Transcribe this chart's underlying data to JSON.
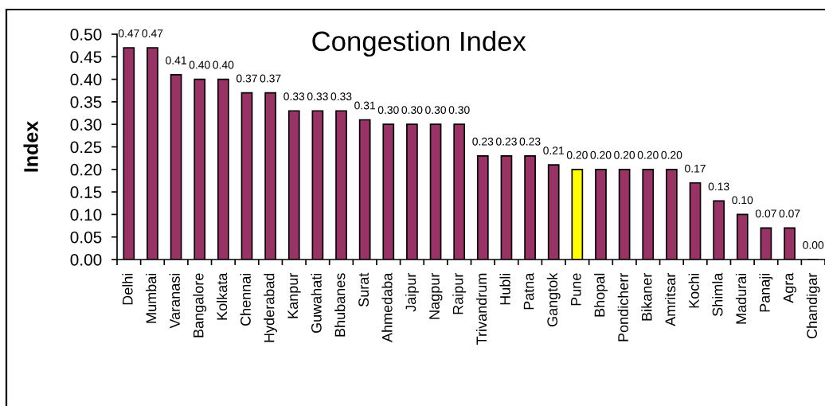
{
  "chart_data": {
    "type": "bar",
    "title": "Congestion Index",
    "ylabel": "Index",
    "categories": [
      "Delhi",
      "Mumbai",
      "Varanasi",
      "Bangalore",
      "Kolkata",
      "Chennai",
      "Hyderabad",
      "Kanpur",
      "Guwahati",
      "Bhubanes",
      "Surat",
      "Ahmedaba",
      "Jaipur",
      "Nagpur",
      "Raipur",
      "Trivandrum",
      "Hubli",
      "Patna",
      "Gangtok",
      "Pune",
      "Bhopal",
      "Pondicherr",
      "Bikaner",
      "Amritsar",
      "Kochi",
      "Shimla",
      "Madurai",
      "Panaji",
      "Agra",
      "Chandigar"
    ],
    "values": [
      0.47,
      0.47,
      0.41,
      0.4,
      0.4,
      0.37,
      0.37,
      0.33,
      0.33,
      0.33,
      0.31,
      0.3,
      0.3,
      0.3,
      0.3,
      0.23,
      0.23,
      0.23,
      0.21,
      0.2,
      0.2,
      0.2,
      0.2,
      0.2,
      0.17,
      0.13,
      0.1,
      0.07,
      0.07,
      0.0
    ],
    "value_labels": [
      "0.47",
      "0.47",
      "0.41",
      "0.40",
      "0.40",
      "0.37",
      "0.37",
      "0.33",
      "0.33",
      "0.33",
      "0.31",
      "0.30",
      "0.30",
      "0.30",
      "0.30",
      "0.23",
      "0.23",
      "0.23",
      "0.21",
      "0.20",
      "0.20",
      "0.20",
      "0.20",
      "0.20",
      "0.17",
      "0.13",
      "0.10",
      "0.07",
      "0.07",
      "0.00"
    ],
    "colors": [
      "#993366",
      "#993366",
      "#993366",
      "#993366",
      "#993366",
      "#993366",
      "#993366",
      "#993366",
      "#993366",
      "#993366",
      "#993366",
      "#993366",
      "#993366",
      "#993366",
      "#993366",
      "#993366",
      "#993366",
      "#993366",
      "#993366",
      "#ffff00",
      "#993366",
      "#993366",
      "#993366",
      "#993366",
      "#993366",
      "#993366",
      "#993366",
      "#993366",
      "#993366",
      "#993366"
    ],
    "ylim": [
      0,
      0.5
    ],
    "yticks": [
      {
        "value": 0,
        "label": "0.00"
      },
      {
        "value": 0.05,
        "label": "0.05"
      },
      {
        "value": 0.1,
        "label": "0.10"
      },
      {
        "value": 0.15,
        "label": "0.15"
      },
      {
        "value": 0.2,
        "label": "0.20"
      },
      {
        "value": 0.25,
        "label": "0.25"
      },
      {
        "value": 0.3,
        "label": "0.30"
      },
      {
        "value": 0.35,
        "label": "0.35"
      },
      {
        "value": 0.4,
        "label": "0.40"
      },
      {
        "value": 0.45,
        "label": "0.45"
      },
      {
        "value": 0.5,
        "label": "0.50"
      }
    ],
    "grid": false,
    "legend": false
  }
}
